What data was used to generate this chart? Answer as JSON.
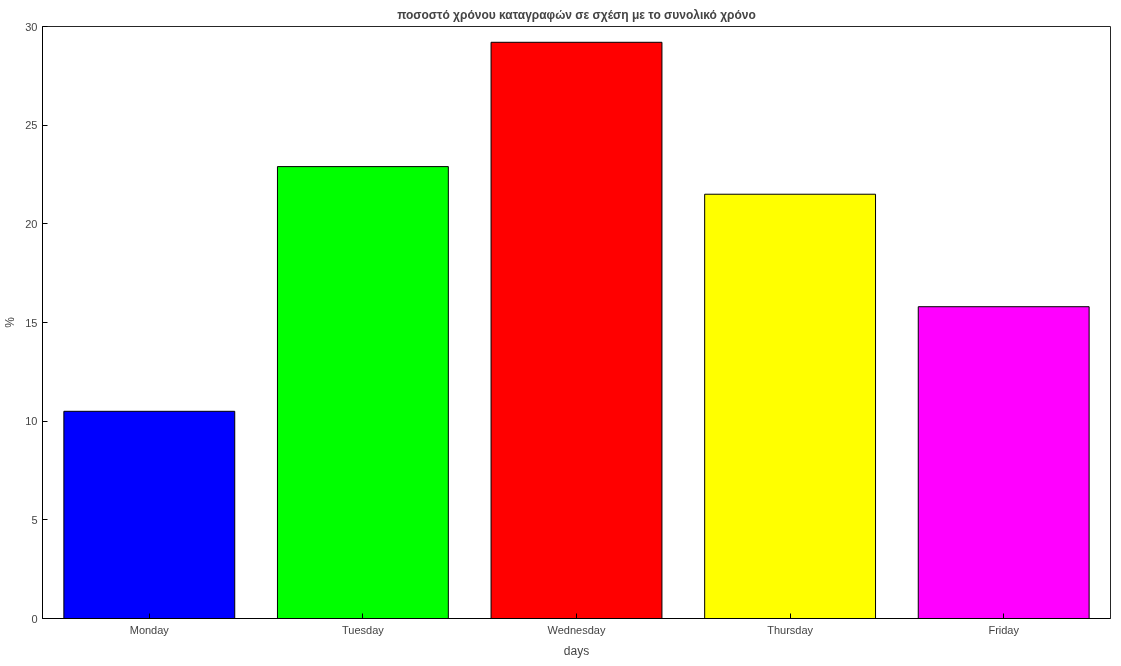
{
  "chart_data": {
    "type": "bar",
    "title": "ποσοστό χρόνου καταγραφών σε σχέση με το συνολικό χρόνο",
    "xlabel": "days",
    "ylabel": "%",
    "categories": [
      "Monday",
      "Tuesday",
      "Wednesday",
      "Thursday",
      "Friday"
    ],
    "values": [
      10.5,
      22.9,
      29.2,
      21.5,
      15.8
    ],
    "colors": [
      "#0000ff",
      "#00ff00",
      "#ff0000",
      "#ffff00",
      "#ff00ff"
    ],
    "ylim": [
      0,
      30
    ],
    "yticks": [
      0,
      5,
      10,
      15,
      20,
      25,
      30
    ],
    "grid": false
  }
}
